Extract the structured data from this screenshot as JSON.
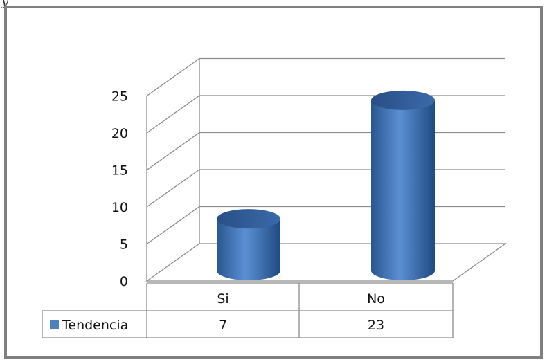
{
  "header_fragment": "y",
  "chart_data": {
    "type": "bar",
    "style": "3d-cylinder",
    "categories": [
      "Si",
      "No"
    ],
    "series": [
      {
        "name": "Tendencia",
        "values": [
          7,
          23
        ],
        "color": "#4f81bd"
      }
    ],
    "ylim": [
      0,
      25
    ],
    "yticks": [
      0,
      5,
      10,
      15,
      20,
      25
    ],
    "grid": true,
    "legend": "data-table",
    "data_table": true
  }
}
